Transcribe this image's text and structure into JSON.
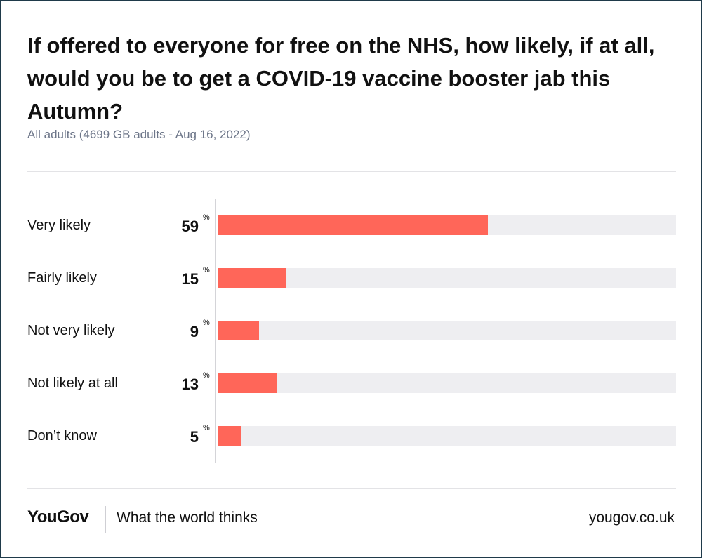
{
  "chart_data": {
    "type": "bar",
    "orientation": "horizontal",
    "title": "If offered to everyone for free on the NHS, how likely, if at all, would you be to get a COVID-19 vaccine booster jab this Autumn?",
    "subtitle": "All adults (4699 GB adults - Aug 16, 2022)",
    "categories": [
      "Very likely",
      "Fairly likely",
      "Not very likely",
      "Not likely at all",
      "Don’t know"
    ],
    "values": [
      59,
      15,
      9,
      13,
      5
    ],
    "value_unit": "%",
    "xlim": [
      0,
      100
    ],
    "xlabel": "",
    "ylabel": "",
    "grid": false,
    "colors": {
      "bar": "#ff6659",
      "track": "#eeeef1"
    }
  },
  "footer": {
    "logo": "YouGov",
    "tagline": "What the world thinks",
    "url": "yougov.co.uk"
  }
}
